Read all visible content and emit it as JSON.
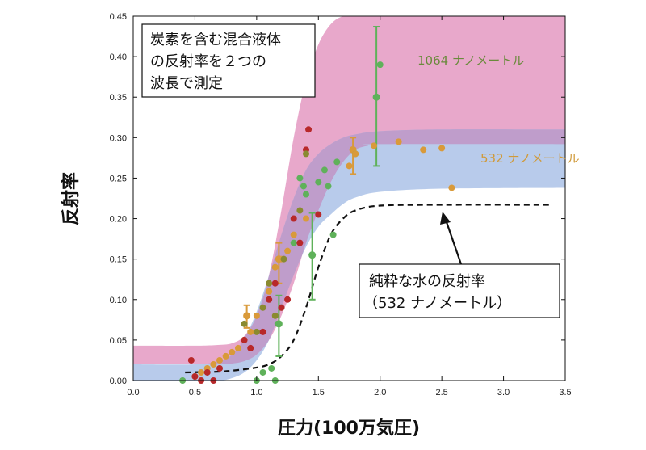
{
  "chart_data": {
    "type": "scatter",
    "xlabel": "圧力(100万気圧)",
    "ylabel": "反射率",
    "xlim": [
      0,
      3.5
    ],
    "ylim": [
      0,
      0.45
    ],
    "xticks": [
      "0.0",
      "0.5",
      "1.0",
      "1.5",
      "2.0",
      "2.5",
      "3.0",
      "3.5"
    ],
    "yticks": [
      "0.00",
      "0.05",
      "0.10",
      "0.15",
      "0.20",
      "0.25",
      "0.30",
      "0.35",
      "0.40",
      "0.45"
    ],
    "title_box": [
      "炭素を含む混合液体",
      "の反射率を２つの",
      "波長で測定"
    ],
    "annotation_box": [
      "純粋な水の反射率",
      "（532 ナノメートル）"
    ],
    "grid": false,
    "colors": {
      "band_1064": "#e8a8cb",
      "band_532": "#b4c8ea",
      "band_overlap": "#bf9dcb",
      "green": "#5fb15a",
      "orange": "#d99a3a",
      "red": "#b8282a",
      "olive": "#8a8a30",
      "label_1064": "#6a8a3c",
      "label_532": "#d09a3a",
      "dash": "#111111"
    },
    "series": [
      {
        "name": "1064 ナノメートル",
        "kind": "band",
        "x": [
          0,
          0.5,
          0.7,
          0.8,
          0.9,
          1.0,
          1.1,
          1.2,
          1.3,
          1.4,
          1.5,
          1.6,
          1.7,
          1.8,
          1.9,
          2.0,
          3.5
        ],
        "lower": [
          0.02,
          0.02,
          0.02,
          0.021,
          0.024,
          0.032,
          0.05,
          0.08,
          0.12,
          0.17,
          0.21,
          0.245,
          0.27,
          0.285,
          0.29,
          0.292,
          0.292
        ],
        "upper": [
          0.043,
          0.043,
          0.044,
          0.046,
          0.055,
          0.08,
          0.13,
          0.21,
          0.3,
          0.37,
          0.415,
          0.44,
          0.45,
          0.45,
          0.45,
          0.45,
          0.45
        ]
      },
      {
        "name": "532 ナノメートル",
        "kind": "band",
        "x": [
          0,
          0.5,
          0.7,
          0.8,
          0.9,
          1.0,
          1.1,
          1.2,
          1.3,
          1.4,
          1.5,
          1.6,
          1.7,
          1.8,
          2.0,
          2.5,
          3.5
        ],
        "lower": [
          0.0,
          0.0,
          0.0,
          0.003,
          0.01,
          0.025,
          0.05,
          0.09,
          0.13,
          0.165,
          0.19,
          0.205,
          0.218,
          0.226,
          0.233,
          0.237,
          0.238
        ],
        "upper": [
          0.02,
          0.02,
          0.024,
          0.032,
          0.052,
          0.085,
          0.13,
          0.18,
          0.225,
          0.26,
          0.28,
          0.292,
          0.3,
          0.304,
          0.308,
          0.31,
          0.31
        ]
      },
      {
        "name": "純粋な水の反射率",
        "kind": "dashed",
        "x": [
          0.42,
          0.7,
          0.85,
          1.0,
          1.1,
          1.2,
          1.3,
          1.4,
          1.5,
          1.6,
          1.7,
          1.8,
          2.0,
          2.5,
          3.4
        ],
        "y": [
          0.01,
          0.011,
          0.013,
          0.016,
          0.02,
          0.03,
          0.05,
          0.09,
          0.14,
          0.18,
          0.2,
          0.21,
          0.216,
          0.217,
          0.217
        ]
      },
      {
        "name": "green",
        "kind": "points",
        "color": "#5fb15a",
        "x": [
          0.4,
          1.0,
          1.05,
          1.12,
          1.15,
          1.17,
          1.2,
          1.3,
          1.35,
          1.38,
          1.4,
          1.45,
          1.5,
          1.55,
          1.58,
          1.62,
          1.65,
          1.8,
          1.97,
          2.0
        ],
        "y": [
          0.0,
          0.0,
          0.01,
          0.015,
          0.0,
          0.07,
          0.09,
          0.17,
          0.25,
          0.24,
          0.23,
          0.155,
          0.245,
          0.26,
          0.24,
          0.18,
          0.27,
          0.28,
          0.35,
          0.39
        ]
      },
      {
        "name": "orange",
        "kind": "points",
        "color": "#d99a3a",
        "x": [
          0.5,
          0.55,
          0.6,
          0.65,
          0.7,
          0.75,
          0.8,
          0.85,
          0.9,
          0.95,
          1.0,
          1.1,
          1.15,
          1.2,
          1.25,
          1.3,
          1.4,
          1.75,
          1.8,
          1.95,
          2.15,
          2.35,
          2.5,
          2.58
        ],
        "y": [
          0.005,
          0.01,
          0.015,
          0.02,
          0.025,
          0.03,
          0.035,
          0.04,
          0.05,
          0.06,
          0.08,
          0.11,
          0.14,
          0.15,
          0.16,
          0.18,
          0.2,
          0.265,
          0.28,
          0.29,
          0.295,
          0.285,
          0.287,
          0.238
        ]
      },
      {
        "name": "red",
        "kind": "points",
        "color": "#b8282a",
        "x": [
          0.47,
          0.5,
          0.55,
          0.6,
          0.65,
          0.7,
          0.9,
          0.95,
          1.05,
          1.1,
          1.15,
          1.2,
          1.25,
          1.3,
          1.35,
          1.4,
          1.42,
          1.5
        ],
        "y": [
          0.025,
          0.005,
          0.0,
          0.01,
          0.0,
          0.015,
          0.05,
          0.04,
          0.06,
          0.1,
          0.12,
          0.09,
          0.1,
          0.2,
          0.17,
          0.285,
          0.31,
          0.205
        ]
      },
      {
        "name": "olive",
        "kind": "points",
        "color": "#8a8a30",
        "x": [
          0.9,
          1.0,
          1.05,
          1.1,
          1.15,
          1.22,
          1.35,
          1.4
        ],
        "y": [
          0.07,
          0.06,
          0.09,
          0.12,
          0.08,
          0.15,
          0.21,
          0.28
        ]
      }
    ],
    "error_bars": [
      {
        "x": 0.92,
        "y": 0.08,
        "low": 0.065,
        "high": 0.093,
        "color": "#d99a3a"
      },
      {
        "x": 1.18,
        "y": 0.15,
        "low": 0.12,
        "high": 0.17,
        "color": "#d99a3a"
      },
      {
        "x": 1.78,
        "y": 0.285,
        "low": 0.255,
        "high": 0.3,
        "color": "#d99a3a"
      },
      {
        "x": 1.18,
        "y": 0.07,
        "low": 0.03,
        "high": 0.105,
        "color": "#5fb15a"
      },
      {
        "x": 1.45,
        "y": 0.155,
        "low": 0.1,
        "high": 0.207,
        "color": "#5fb15a"
      },
      {
        "x": 1.97,
        "y": 0.35,
        "low": 0.265,
        "high": 0.437,
        "color": "#5fb15a"
      }
    ],
    "labels": {
      "label_1064": "1064 ナノメートル",
      "label_532": "532 ナノメートル"
    }
  }
}
